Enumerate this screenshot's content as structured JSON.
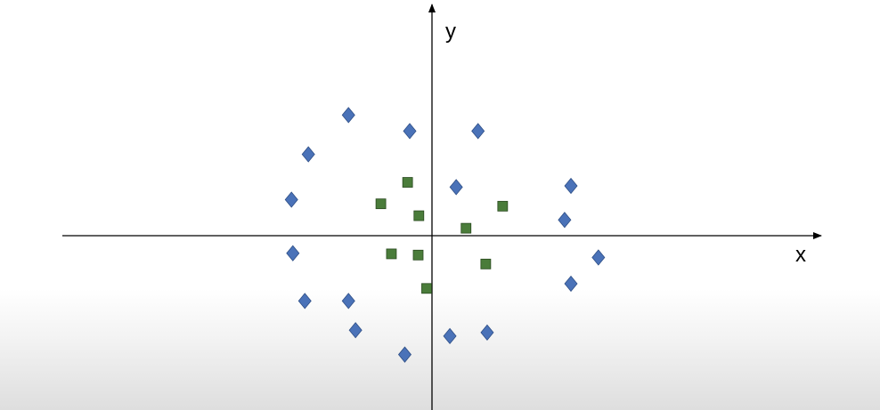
{
  "colors": {
    "axis": "#000000",
    "diamond_fill": "#4a72b8",
    "diamond_stroke": "#2f4f86",
    "square_fill": "#4a7c3a",
    "square_stroke": "#2a4a1f"
  },
  "chart_data": {
    "type": "scatter",
    "xlabel": "x",
    "ylabel": "y",
    "xlim": [
      -6.25,
      6.25
    ],
    "ylim": [
      -2.93,
      3.95
    ],
    "grid": false,
    "legend": "none",
    "series": [
      {
        "marker": "diamond",
        "points": [
          [
            -1.3,
            2.02
          ],
          [
            -0.43,
            1.75
          ],
          [
            0.54,
            1.75
          ],
          [
            -1.87,
            1.36
          ],
          [
            -2.11,
            0.6
          ],
          [
            0.23,
            0.81
          ],
          [
            1.86,
            0.83
          ],
          [
            1.77,
            0.26
          ],
          [
            -2.09,
            -0.3
          ],
          [
            2.25,
            -0.37
          ],
          [
            1.86,
            -0.81
          ],
          [
            -1.92,
            -1.1
          ],
          [
            -1.3,
            -1.1
          ],
          [
            -1.2,
            -1.59
          ],
          [
            0.14,
            -1.69
          ],
          [
            0.67,
            -1.63
          ],
          [
            -0.5,
            -2.0
          ]
        ]
      },
      {
        "marker": "square",
        "points": [
          [
            -0.46,
            0.89
          ],
          [
            -0.84,
            0.53
          ],
          [
            0.89,
            0.49
          ],
          [
            -0.3,
            0.33
          ],
          [
            0.37,
            0.12
          ],
          [
            -0.69,
            -0.31
          ],
          [
            -0.31,
            -0.33
          ],
          [
            0.65,
            -0.48
          ],
          [
            -0.19,
            -0.89
          ]
        ]
      }
    ]
  }
}
